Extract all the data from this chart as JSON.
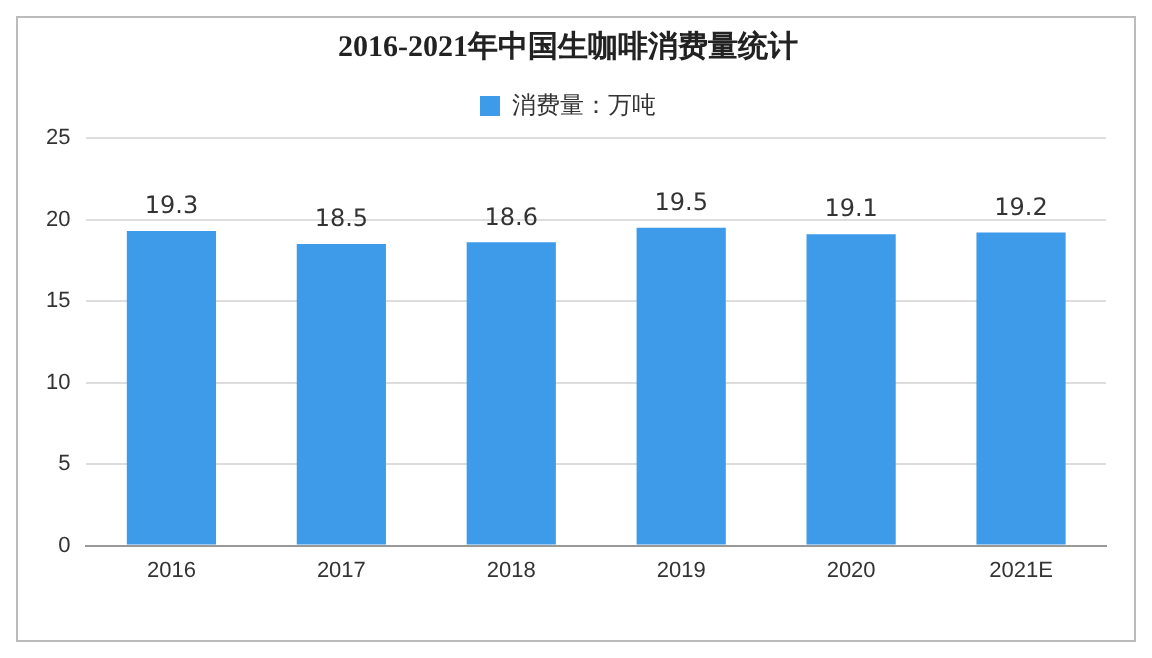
{
  "chart_data": {
    "type": "bar",
    "title": "2016-2021年中国生咖啡消费量统计",
    "categories": [
      "2016",
      "2017",
      "2018",
      "2019",
      "2020",
      "2021E"
    ],
    "series": [
      {
        "name": "消费量：万吨",
        "color": "#3d9be9",
        "values": [
          19.3,
          18.5,
          18.6,
          19.5,
          19.1,
          19.2
        ]
      }
    ],
    "ylim": [
      0,
      25
    ],
    "yticks": [
      0,
      5,
      10,
      15,
      20,
      25
    ],
    "grid": "y",
    "legend": "top",
    "data_labels": true
  }
}
